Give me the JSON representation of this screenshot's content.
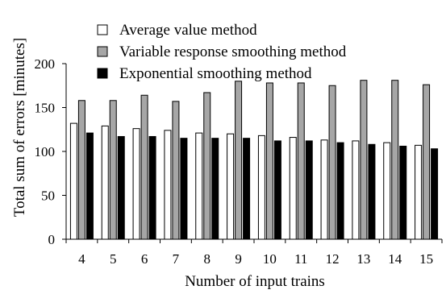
{
  "chart_data": {
    "type": "bar",
    "title": "",
    "xlabel": "Number of input trains",
    "ylabel": "Total sum of errors [minutes]",
    "ylim": [
      0,
      200
    ],
    "yticks": [
      0,
      50,
      100,
      150,
      200
    ],
    "grid": false,
    "legend_position": "top",
    "categories": [
      "4",
      "5",
      "6",
      "7",
      "8",
      "9",
      "10",
      "11",
      "12",
      "13",
      "14",
      "15"
    ],
    "series": [
      {
        "name": "Average value method",
        "color": "#ffffff",
        "values": [
          132,
          129,
          126,
          124,
          121,
          120,
          118,
          116,
          113,
          112,
          110,
          107
        ]
      },
      {
        "name": "Variable response smoothing method",
        "color": "#a6a6a6",
        "values": [
          158,
          158,
          164,
          157,
          167,
          180,
          178,
          178,
          175,
          181,
          181,
          176
        ]
      },
      {
        "name": "Exponential smoothing method",
        "color": "#000000",
        "values": [
          121,
          117,
          117,
          115,
          115,
          115,
          112,
          112,
          110,
          108,
          106,
          103
        ]
      }
    ]
  }
}
